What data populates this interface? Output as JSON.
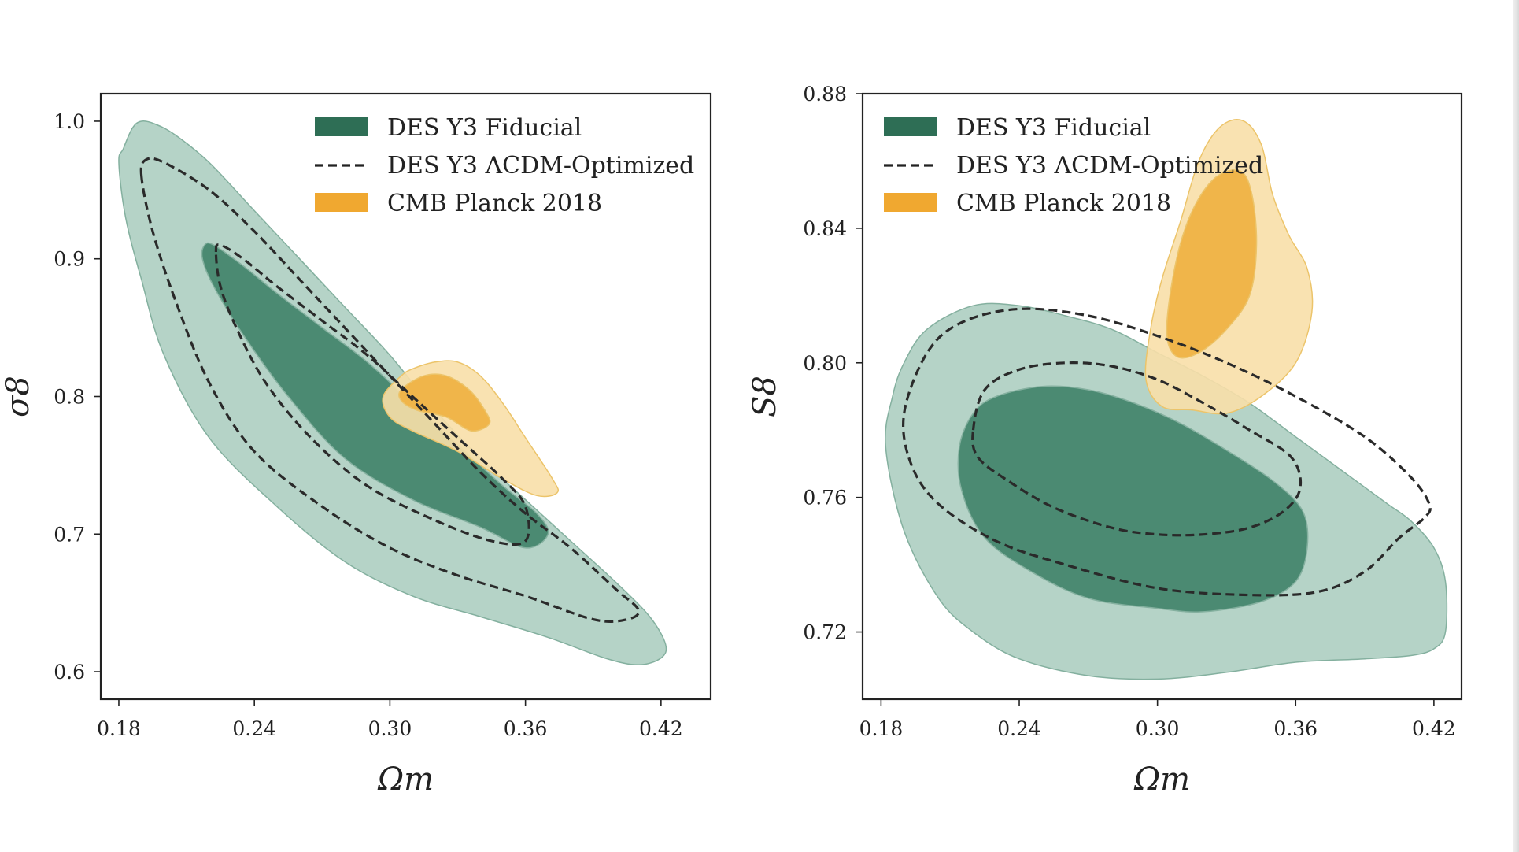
{
  "chart_data": [
    {
      "type": "contour",
      "xlabel": "Ωm",
      "ylabel": "σ8",
      "xlim": [
        0.172,
        0.442
      ],
      "ylim": [
        0.58,
        1.02
      ],
      "xticks": [
        "0.18",
        "0.24",
        "0.30",
        "0.36",
        "0.42"
      ],
      "yticks": [
        "0.6",
        "0.7",
        "0.8",
        "0.9",
        "1.0"
      ],
      "legend": {
        "placement": "top-right",
        "entries": [
          {
            "label": "DES Y3 Fiducial",
            "style": "filled",
            "color": "#2e6e55"
          },
          {
            "label": "DES Y3 ΛCDM-Optimized",
            "style": "dashed",
            "color": "#222222"
          },
          {
            "label": "CMB Planck 2018",
            "style": "filled",
            "color": "#f0a830"
          }
        ]
      },
      "series": [
        {
          "name": "DES Y3 Fiducial",
          "level": "outer",
          "color": "#b5d3c7",
          "points": [
            [
              0.18,
              0.97
            ],
            [
              0.182,
              0.98
            ],
            [
              0.186,
              0.995
            ],
            [
              0.19,
              1.0
            ],
            [
              0.196,
              0.998
            ],
            [
              0.205,
              0.99
            ],
            [
              0.22,
              0.97
            ],
            [
              0.24,
              0.935
            ],
            [
              0.26,
              0.9
            ],
            [
              0.28,
              0.865
            ],
            [
              0.3,
              0.83
            ],
            [
              0.32,
              0.79
            ],
            [
              0.34,
              0.755
            ],
            [
              0.36,
              0.725
            ],
            [
              0.38,
              0.695
            ],
            [
              0.4,
              0.665
            ],
            [
              0.415,
              0.64
            ],
            [
              0.422,
              0.62
            ],
            [
              0.42,
              0.61
            ],
            [
              0.41,
              0.605
            ],
            [
              0.395,
              0.61
            ],
            [
              0.37,
              0.625
            ],
            [
              0.34,
              0.64
            ],
            [
              0.31,
              0.655
            ],
            [
              0.28,
              0.68
            ],
            [
              0.25,
              0.72
            ],
            [
              0.22,
              0.77
            ],
            [
              0.2,
              0.83
            ],
            [
              0.19,
              0.885
            ],
            [
              0.183,
              0.93
            ]
          ]
        },
        {
          "name": "DES Y3 Fiducial",
          "level": "inner",
          "color": "#4b8a72",
          "points": [
            [
              0.217,
              0.9
            ],
            [
              0.218,
              0.91
            ],
            [
              0.222,
              0.91
            ],
            [
              0.235,
              0.895
            ],
            [
              0.25,
              0.875
            ],
            [
              0.27,
              0.85
            ],
            [
              0.29,
              0.825
            ],
            [
              0.31,
              0.795
            ],
            [
              0.33,
              0.765
            ],
            [
              0.35,
              0.735
            ],
            [
              0.365,
              0.715
            ],
            [
              0.37,
              0.7
            ],
            [
              0.36,
              0.69
            ],
            [
              0.34,
              0.705
            ],
            [
              0.31,
              0.725
            ],
            [
              0.28,
              0.755
            ],
            [
              0.255,
              0.8
            ],
            [
              0.235,
              0.845
            ],
            [
              0.222,
              0.88
            ]
          ]
        },
        {
          "name": "DES Y3 ΛCDM-Optimized",
          "level": "outer",
          "style": "dashed",
          "points": [
            [
              0.19,
              0.96
            ],
            [
              0.192,
              0.972
            ],
            [
              0.2,
              0.97
            ],
            [
              0.22,
              0.95
            ],
            [
              0.24,
              0.92
            ],
            [
              0.26,
              0.885
            ],
            [
              0.28,
              0.85
            ],
            [
              0.3,
              0.815
            ],
            [
              0.32,
              0.78
            ],
            [
              0.34,
              0.745
            ],
            [
              0.36,
              0.715
            ],
            [
              0.38,
              0.69
            ],
            [
              0.4,
              0.66
            ],
            [
              0.41,
              0.645
            ],
            [
              0.405,
              0.638
            ],
            [
              0.39,
              0.638
            ],
            [
              0.36,
              0.655
            ],
            [
              0.33,
              0.67
            ],
            [
              0.3,
              0.69
            ],
            [
              0.27,
              0.72
            ],
            [
              0.24,
              0.76
            ],
            [
              0.22,
              0.81
            ],
            [
              0.205,
              0.87
            ],
            [
              0.195,
              0.92
            ]
          ]
        },
        {
          "name": "DES Y3 ΛCDM-Optimized",
          "level": "inner",
          "style": "dashed",
          "points": [
            [
              0.223,
              0.905
            ],
            [
              0.225,
              0.91
            ],
            [
              0.235,
              0.9
            ],
            [
              0.25,
              0.88
            ],
            [
              0.27,
              0.855
            ],
            [
              0.29,
              0.83
            ],
            [
              0.31,
              0.8
            ],
            [
              0.33,
              0.77
            ],
            [
              0.35,
              0.74
            ],
            [
              0.36,
              0.72
            ],
            [
              0.36,
              0.695
            ],
            [
              0.345,
              0.695
            ],
            [
              0.32,
              0.71
            ],
            [
              0.29,
              0.735
            ],
            [
              0.265,
              0.77
            ],
            [
              0.245,
              0.81
            ],
            [
              0.232,
              0.85
            ],
            [
              0.225,
              0.88
            ]
          ]
        },
        {
          "name": "CMB Planck 2018",
          "level": "outer",
          "color": "#f8dfa8",
          "points": [
            [
              0.297,
              0.8
            ],
            [
              0.305,
              0.815
            ],
            [
              0.31,
              0.82
            ],
            [
              0.32,
              0.825
            ],
            [
              0.33,
              0.825
            ],
            [
              0.34,
              0.815
            ],
            [
              0.35,
              0.795
            ],
            [
              0.36,
              0.77
            ],
            [
              0.372,
              0.74
            ],
            [
              0.374,
              0.73
            ],
            [
              0.365,
              0.728
            ],
            [
              0.35,
              0.74
            ],
            [
              0.33,
              0.76
            ],
            [
              0.31,
              0.775
            ],
            [
              0.3,
              0.785
            ]
          ]
        },
        {
          "name": "CMB Planck 2018",
          "level": "inner",
          "color": "#f0b54a",
          "points": [
            [
              0.305,
              0.805
            ],
            [
              0.315,
              0.815
            ],
            [
              0.325,
              0.815
            ],
            [
              0.335,
              0.805
            ],
            [
              0.342,
              0.79
            ],
            [
              0.344,
              0.78
            ],
            [
              0.336,
              0.775
            ],
            [
              0.325,
              0.785
            ],
            [
              0.312,
              0.79
            ],
            [
              0.305,
              0.797
            ]
          ]
        }
      ]
    },
    {
      "type": "contour",
      "xlabel": "Ωm",
      "ylabel": "S8",
      "xlim": [
        0.172,
        0.432
      ],
      "ylim": [
        0.7,
        0.88
      ],
      "xticks": [
        "0.18",
        "0.24",
        "0.30",
        "0.36",
        "0.42"
      ],
      "yticks": [
        "0.72",
        "0.76",
        "0.80",
        "0.84",
        "0.88"
      ],
      "legend": {
        "placement": "top-left",
        "entries": [
          {
            "label": "DES Y3 Fiducial",
            "style": "filled",
            "color": "#2e6e55"
          },
          {
            "label": "DES Y3 ΛCDM-Optimized",
            "style": "dashed",
            "color": "#222222"
          },
          {
            "label": "CMB Planck 2018",
            "style": "filled",
            "color": "#f0a830"
          }
        ]
      },
      "series": [
        {
          "name": "DES Y3 Fiducial",
          "level": "outer",
          "color": "#b5d3c7",
          "points": [
            [
              0.185,
              0.79
            ],
            [
              0.19,
              0.8
            ],
            [
              0.2,
              0.81
            ],
            [
              0.22,
              0.817
            ],
            [
              0.24,
              0.817
            ],
            [
              0.26,
              0.814
            ],
            [
              0.28,
              0.81
            ],
            [
              0.3,
              0.803
            ],
            [
              0.32,
              0.796
            ],
            [
              0.34,
              0.788
            ],
            [
              0.36,
              0.778
            ],
            [
              0.38,
              0.768
            ],
            [
              0.4,
              0.758
            ],
            [
              0.41,
              0.753
            ],
            [
              0.42,
              0.745
            ],
            [
              0.425,
              0.735
            ],
            [
              0.425,
              0.72
            ],
            [
              0.42,
              0.715
            ],
            [
              0.41,
              0.713
            ],
            [
              0.39,
              0.712
            ],
            [
              0.36,
              0.711
            ],
            [
              0.33,
              0.708
            ],
            [
              0.3,
              0.706
            ],
            [
              0.27,
              0.707
            ],
            [
              0.24,
              0.712
            ],
            [
              0.22,
              0.72
            ],
            [
              0.205,
              0.73
            ],
            [
              0.19,
              0.75
            ],
            [
              0.182,
              0.775
            ]
          ]
        },
        {
          "name": "DES Y3 Fiducial",
          "level": "inner",
          "color": "#4b8a72",
          "points": [
            [
              0.214,
              0.775
            ],
            [
              0.22,
              0.785
            ],
            [
              0.23,
              0.79
            ],
            [
              0.25,
              0.793
            ],
            [
              0.27,
              0.792
            ],
            [
              0.29,
              0.788
            ],
            [
              0.31,
              0.782
            ],
            [
              0.33,
              0.774
            ],
            [
              0.35,
              0.765
            ],
            [
              0.363,
              0.756
            ],
            [
              0.365,
              0.745
            ],
            [
              0.36,
              0.735
            ],
            [
              0.345,
              0.729
            ],
            [
              0.32,
              0.726
            ],
            [
              0.3,
              0.727
            ],
            [
              0.27,
              0.73
            ],
            [
              0.245,
              0.738
            ],
            [
              0.225,
              0.748
            ],
            [
              0.215,
              0.762
            ]
          ]
        },
        {
          "name": "DES Y3 ΛCDM-Optimized",
          "level": "outer",
          "style": "dashed",
          "points": [
            [
              0.19,
              0.785
            ],
            [
              0.2,
              0.803
            ],
            [
              0.215,
              0.812
            ],
            [
              0.24,
              0.816
            ],
            [
              0.27,
              0.814
            ],
            [
              0.3,
              0.808
            ],
            [
              0.33,
              0.8
            ],
            [
              0.36,
              0.79
            ],
            [
              0.39,
              0.778
            ],
            [
              0.41,
              0.766
            ],
            [
              0.418,
              0.758
            ],
            [
              0.416,
              0.754
            ],
            [
              0.405,
              0.748
            ],
            [
              0.39,
              0.738
            ],
            [
              0.37,
              0.732
            ],
            [
              0.34,
              0.731
            ],
            [
              0.3,
              0.733
            ],
            [
              0.26,
              0.74
            ],
            [
              0.23,
              0.747
            ],
            [
              0.205,
              0.758
            ],
            [
              0.193,
              0.77
            ]
          ]
        },
        {
          "name": "DES Y3 ΛCDM-Optimized",
          "level": "inner",
          "style": "dashed",
          "points": [
            [
              0.22,
              0.78
            ],
            [
              0.225,
              0.792
            ],
            [
              0.24,
              0.798
            ],
            [
              0.26,
              0.8
            ],
            [
              0.28,
              0.799
            ],
            [
              0.3,
              0.795
            ],
            [
              0.32,
              0.788
            ],
            [
              0.34,
              0.78
            ],
            [
              0.358,
              0.772
            ],
            [
              0.362,
              0.763
            ],
            [
              0.355,
              0.756
            ],
            [
              0.34,
              0.751
            ],
            [
              0.32,
              0.749
            ],
            [
              0.3,
              0.749
            ],
            [
              0.28,
              0.751
            ],
            [
              0.255,
              0.757
            ],
            [
              0.235,
              0.765
            ],
            [
              0.222,
              0.772
            ]
          ]
        },
        {
          "name": "CMB Planck 2018",
          "level": "outer",
          "color": "#f8dfa8",
          "points": [
            [
              0.295,
              0.795
            ],
            [
              0.297,
              0.81
            ],
            [
              0.302,
              0.825
            ],
            [
              0.31,
              0.842
            ],
            [
              0.318,
              0.86
            ],
            [
              0.327,
              0.87
            ],
            [
              0.337,
              0.872
            ],
            [
              0.345,
              0.865
            ],
            [
              0.35,
              0.85
            ],
            [
              0.357,
              0.838
            ],
            [
              0.365,
              0.828
            ],
            [
              0.367,
              0.815
            ],
            [
              0.36,
              0.8
            ],
            [
              0.345,
              0.79
            ],
            [
              0.33,
              0.785
            ],
            [
              0.315,
              0.786
            ],
            [
              0.302,
              0.787
            ]
          ]
        },
        {
          "name": "CMB Planck 2018",
          "level": "inner",
          "color": "#f0b54a",
          "points": [
            [
              0.304,
              0.81
            ],
            [
              0.308,
              0.83
            ],
            [
              0.315,
              0.845
            ],
            [
              0.325,
              0.855
            ],
            [
              0.336,
              0.857
            ],
            [
              0.341,
              0.85
            ],
            [
              0.343,
              0.835
            ],
            [
              0.34,
              0.82
            ],
            [
              0.33,
              0.81
            ],
            [
              0.318,
              0.803
            ],
            [
              0.308,
              0.802
            ]
          ]
        }
      ]
    }
  ]
}
